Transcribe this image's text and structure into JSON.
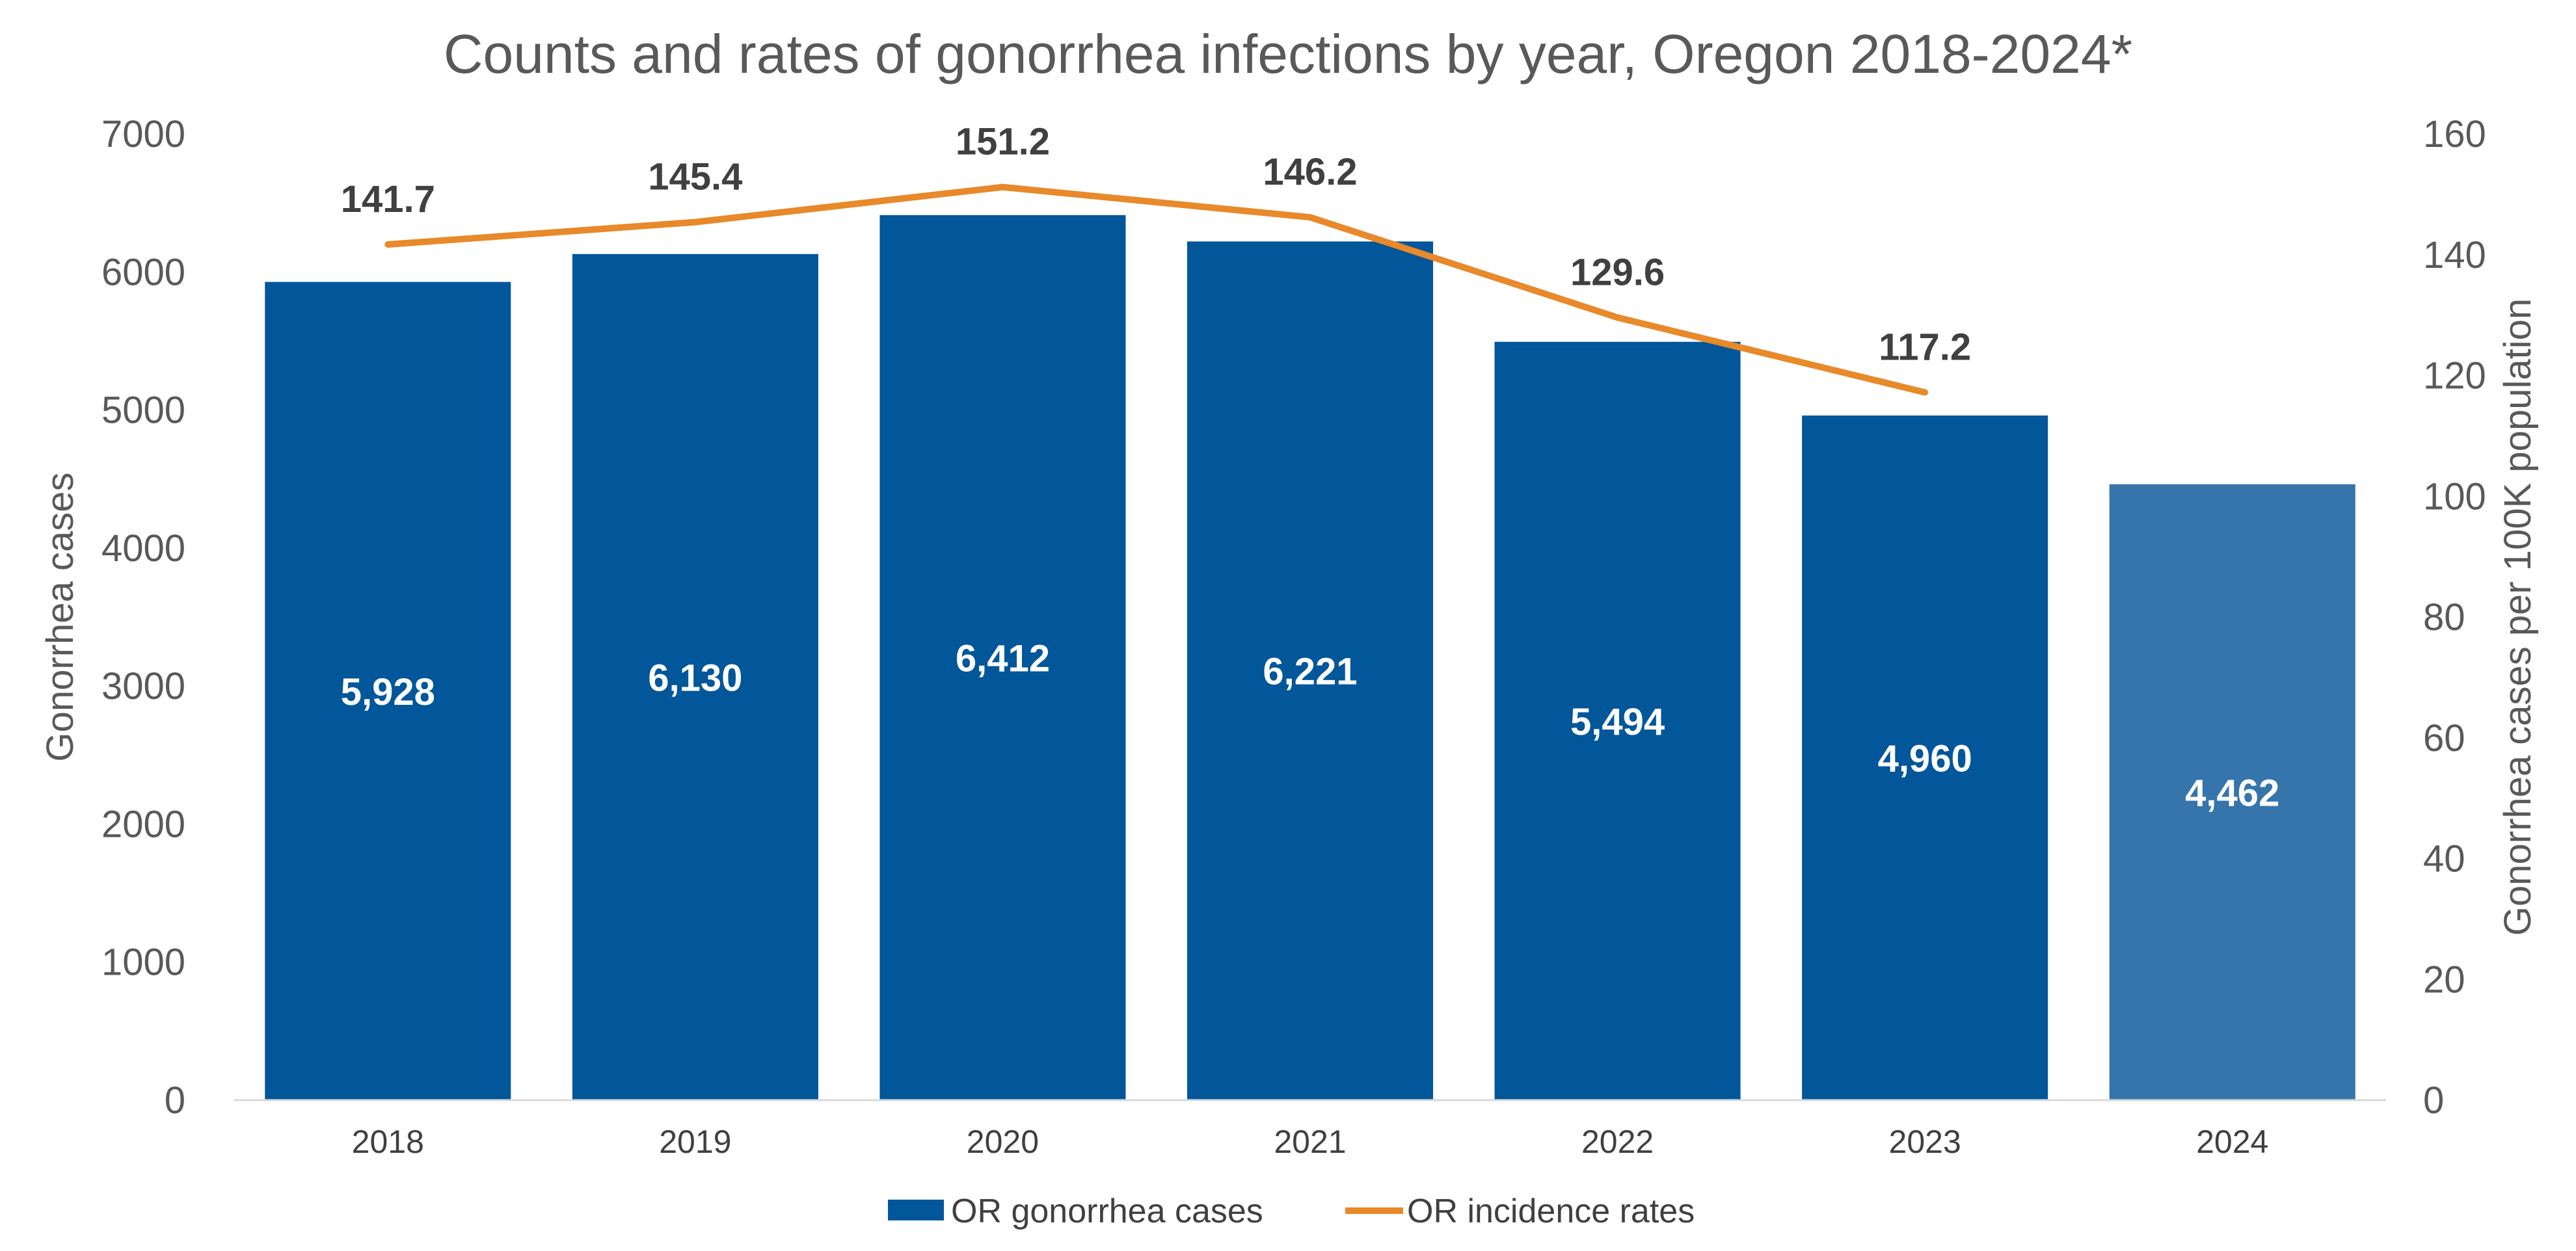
{
  "chart_data": {
    "type": "bar",
    "title": "Counts and rates of gonorrhea infections by year, Oregon 2018-2024*",
    "categories": [
      "2018",
      "2019",
      "2020",
      "2021",
      "2022",
      "2023",
      "2024"
    ],
    "series": [
      {
        "name": "OR gonorrhea cases",
        "type": "bar",
        "axis": "left",
        "values": [
          5928,
          6130,
          6412,
          6221,
          5494,
          4960,
          4462
        ],
        "labels": [
          "5,928",
          "6,130",
          "6,412",
          "6,221",
          "5,494",
          "4,960",
          "4,462"
        ],
        "color": "#02569A",
        "highlight_color": "#3575AC"
      },
      {
        "name": "OR incidence rates",
        "type": "line",
        "axis": "right",
        "values": [
          141.7,
          145.4,
          151.2,
          146.2,
          129.6,
          117.2,
          null
        ],
        "labels": [
          "141.7",
          "145.4",
          "151.2",
          "146.2",
          "129.6",
          "117.2",
          ""
        ],
        "color": "#E8892A"
      }
    ],
    "ylabel": "Gonorrhea cases",
    "y2label": "Gonorrhea cases per 100K population",
    "ylim": [
      0,
      7000
    ],
    "y2lim": [
      0,
      160
    ],
    "yticks": [
      "0",
      "1000",
      "2000",
      "3000",
      "4000",
      "5000",
      "6000",
      "7000"
    ],
    "y2ticks": [
      "0",
      "20",
      "40",
      "60",
      "80",
      "100",
      "120",
      "140",
      "160"
    ],
    "grid": false,
    "legend_position": "bottom"
  }
}
